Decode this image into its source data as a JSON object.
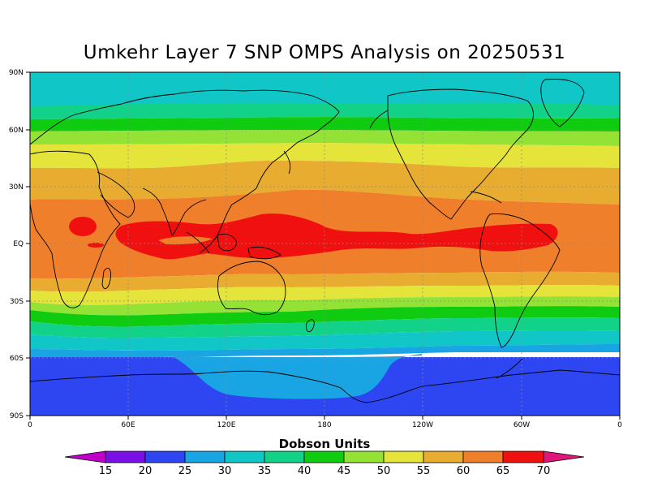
{
  "title": "Umkehr Layer 7 SNP OMPS Analysis on 20250531",
  "colorbar": {
    "title": "Dobson Units",
    "levels": [
      "15",
      "20",
      "25",
      "30",
      "35",
      "40",
      "45",
      "50",
      "55",
      "60",
      "65",
      "70"
    ],
    "colors": {
      "lt15": "#c000c8",
      "15_20": "#7a10e6",
      "20_25": "#2d46f2",
      "25_30": "#19a4e3",
      "30_35": "#10c6c6",
      "35_40": "#12d28a",
      "40_45": "#10cc10",
      "45_50": "#94e236",
      "50_55": "#e4e43a",
      "55_60": "#e8ad30",
      "60_65": "#ef7f2a",
      "65_70": "#f01010",
      "gt70": "#e0167a"
    }
  },
  "axes": {
    "lat_labels": [
      "90N",
      "60N",
      "30N",
      "EQ",
      "30S",
      "60S",
      "90S"
    ],
    "lon_labels": [
      "0",
      "60E",
      "120E",
      "180",
      "120W",
      "60W",
      "0"
    ]
  },
  "chart_data": {
    "type": "heatmap",
    "title": "Umkehr Layer 7 SNP OMPS Analysis on 20250531",
    "xlabel": "",
    "ylabel": "",
    "units": "Dobson Units",
    "x_range": [
      0,
      360
    ],
    "y_range": [
      -90,
      90
    ],
    "color_levels": [
      15,
      20,
      25,
      30,
      35,
      40,
      45,
      50,
      55,
      60,
      65,
      70
    ],
    "zonal_bands": [
      {
        "lat_range": [
          67,
          90
        ],
        "band": "30-35"
      },
      {
        "lat_range": [
          62,
          67
        ],
        "band": "35-40"
      },
      {
        "lat_range": [
          57,
          62
        ],
        "band": "40-45"
      },
      {
        "lat_range": [
          50,
          57
        ],
        "band": "45-50"
      },
      {
        "lat_range": [
          38,
          50
        ],
        "band": "50-55"
      },
      {
        "lat_range": [
          25,
          38
        ],
        "band": "55-60"
      },
      {
        "lat_range": [
          -12,
          25
        ],
        "band": "60-65"
      },
      {
        "lat_range": [
          -8,
          12
        ],
        "band": "65-70 (patchy, centered 80E-180 and 120W-40W)"
      },
      {
        "lat_range": [
          -20,
          -12
        ],
        "band": "55-60"
      },
      {
        "lat_range": [
          -28,
          -20
        ],
        "band": "50-55"
      },
      {
        "lat_range": [
          -33,
          -28
        ],
        "band": "45-50"
      },
      {
        "lat_range": [
          -38,
          -33
        ],
        "band": "40-45"
      },
      {
        "lat_range": [
          -44,
          -38
        ],
        "band": "35-40"
      },
      {
        "lat_range": [
          -52,
          -44
        ],
        "band": "30-35"
      },
      {
        "lat_range": [
          -58,
          -52
        ],
        "band": "25-30"
      },
      {
        "lat_range": [
          -90,
          -58
        ],
        "band": "20-25 (25-30 over 90E-150W near Antarctica)"
      }
    ],
    "grid": true
  }
}
